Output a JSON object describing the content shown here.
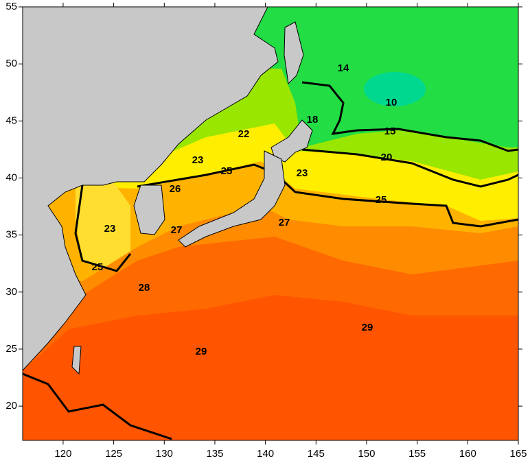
{
  "map": {
    "xlim": [
      116,
      165
    ],
    "ylim": [
      17,
      55
    ],
    "xticks": [
      120,
      125,
      130,
      135,
      140,
      145,
      150,
      155,
      160,
      165
    ],
    "yticks": [
      20,
      25,
      30,
      35,
      40,
      45,
      50,
      55
    ],
    "contour_labels": [
      14,
      10,
      18,
      15,
      22,
      20,
      23,
      25,
      26,
      23,
      25,
      27,
      27,
      23,
      25,
      28,
      29,
      29
    ]
  }
}
